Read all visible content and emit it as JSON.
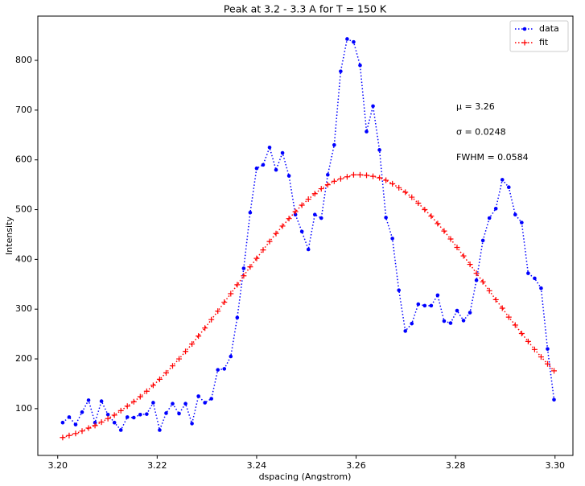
{
  "chart_data": {
    "type": "line",
    "title": "Peak at 3.2 - 3.3 A for T = 150 K",
    "x_label": "dspacing (Angstrom)",
    "y_label": "Intensity",
    "x": [
      3.201,
      3.2023,
      3.2036,
      3.2049,
      3.2062,
      3.2075,
      3.2088,
      3.2101,
      3.2114,
      3.2127,
      3.214,
      3.2153,
      3.2166,
      3.2179,
      3.2192,
      3.2205,
      3.2218,
      3.2231,
      3.2244,
      3.2257,
      3.227,
      3.2283,
      3.2296,
      3.2309,
      3.2322,
      3.2335,
      3.2348,
      3.2361,
      3.2374,
      3.2387,
      3.24,
      3.2413,
      3.2426,
      3.2439,
      3.2452,
      3.2465,
      3.2478,
      3.2491,
      3.2504,
      3.2517,
      3.253,
      3.2543,
      3.2556,
      3.2569,
      3.2582,
      3.2595,
      3.2608,
      3.2621,
      3.2634,
      3.2647,
      3.266,
      3.2673,
      3.2686,
      3.2699,
      3.2712,
      3.2725,
      3.2738,
      3.2751,
      3.2764,
      3.2777,
      3.279,
      3.2803,
      3.2816,
      3.2829,
      3.2842,
      3.2855,
      3.2868,
      3.2881,
      3.2894,
      3.2907,
      3.292,
      3.2933,
      3.2946,
      3.2959,
      3.2972,
      3.2985,
      3.2998
    ],
    "series": [
      {
        "name": "data",
        "color": "#0000ff",
        "marker": "dot",
        "linestyle": "dotted",
        "values": [
          72,
          83,
          68,
          93,
          117,
          72,
          115,
          88,
          72,
          57,
          83,
          82,
          88,
          89,
          112,
          57,
          91,
          110,
          90,
          110,
          70,
          125,
          112,
          120,
          178,
          180,
          205,
          283,
          382,
          494,
          583,
          590,
          625,
          580,
          614,
          568,
          490,
          456,
          420,
          490,
          483,
          570,
          630,
          778,
          843,
          837,
          790,
          657,
          708,
          620,
          484,
          442,
          338,
          256,
          271,
          310,
          307,
          307,
          328,
          276,
          272,
          297,
          277,
          293,
          358,
          438,
          483,
          502,
          560,
          545,
          490,
          474,
          372,
          362,
          342,
          220,
          118
        ]
      },
      {
        "name": "fit",
        "color": "#ff0000",
        "marker": "plus",
        "linestyle": "dotted",
        "values": [
          42,
          46,
          50,
          55,
          61,
          66,
          73,
          80,
          87,
          96,
          105,
          114,
          124,
          135,
          147,
          159,
          172,
          186,
          200,
          215,
          230,
          246,
          262,
          279,
          296,
          314,
          331,
          349,
          367,
          385,
          402,
          419,
          436,
          452,
          467,
          482,
          496,
          509,
          521,
          532,
          542,
          550,
          557,
          562,
          566,
          570,
          570,
          569,
          567,
          564,
          559,
          552,
          544,
          535,
          525,
          513,
          500,
          487,
          472,
          457,
          441,
          424,
          407,
          390,
          372,
          355,
          337,
          319,
          302,
          284,
          268,
          251,
          235,
          219,
          204,
          190,
          176
        ]
      }
    ],
    "xlim": [
      3.196,
      3.3036
    ],
    "ylim": [
      6,
      889
    ],
    "xticks": [
      {
        "value": 3.2,
        "label": "3.20"
      },
      {
        "value": 3.22,
        "label": "3.22"
      },
      {
        "value": 3.24,
        "label": "3.24"
      },
      {
        "value": 3.26,
        "label": "3.26"
      },
      {
        "value": 3.28,
        "label": "3.28"
      },
      {
        "value": 3.3,
        "label": "3.30"
      }
    ],
    "yticks": [
      100,
      200,
      300,
      400,
      500,
      600,
      700,
      800
    ],
    "grid": false,
    "legend": "upper right",
    "annotations": [
      "μ = 3.26",
      "σ = 0.0248",
      "FWHM = 0.0584"
    ]
  }
}
